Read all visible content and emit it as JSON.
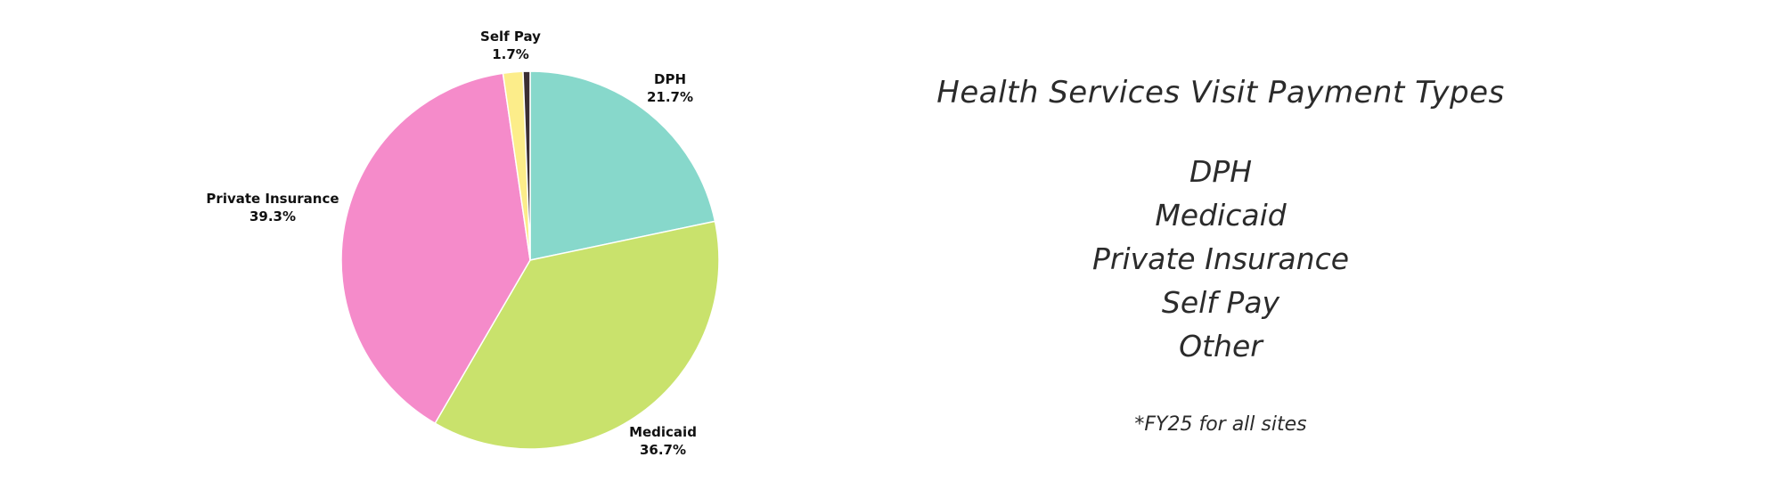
{
  "chart_data": {
    "type": "pie",
    "title": "Health Services Visit Payment Types",
    "slices": [
      {
        "label": "DPH",
        "pct_text": "21.7%",
        "value": 21.7,
        "color": "#87d8cb"
      },
      {
        "label": "Medicaid",
        "pct_text": "36.7%",
        "value": 36.7,
        "color": "#c9e26c"
      },
      {
        "label": "Private Insurance",
        "pct_text": "39.3%",
        "value": 39.3,
        "color": "#f58bca"
      },
      {
        "label": "Self Pay",
        "pct_text": "1.7%",
        "value": 1.7,
        "color": "#fced8a"
      },
      {
        "label": "",
        "pct_text": "",
        "value": 0.6,
        "color": "#3a2e33"
      }
    ],
    "legend": [
      "DPH",
      "Medicaid",
      "Private Insurance",
      "Self Pay",
      "Other"
    ],
    "footnote": "*FY25 for all sites"
  }
}
